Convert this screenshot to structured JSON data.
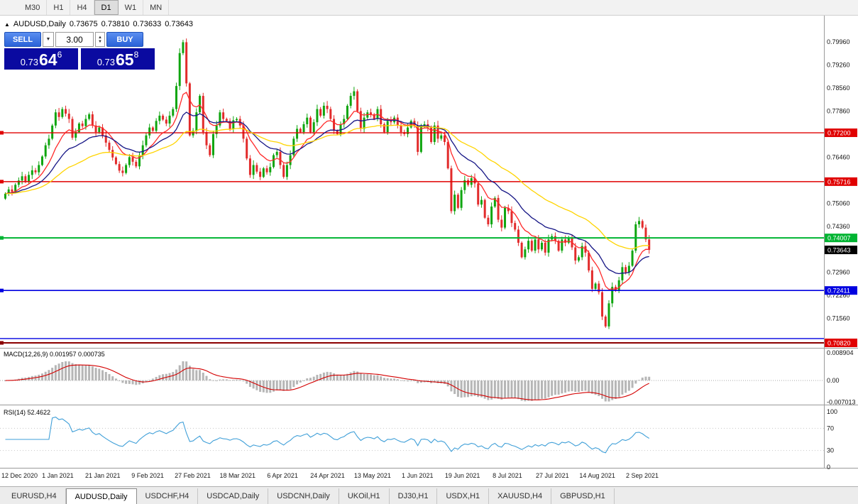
{
  "toolbar": {
    "timeframes": [
      "M30",
      "H1",
      "H4",
      "D1",
      "W1",
      "MN"
    ],
    "active_timeframe": "D1"
  },
  "chart_header": {
    "collapse_icon": "▲",
    "symbol": "AUDUSD,Daily",
    "open": "0.73675",
    "high": "0.73810",
    "low": "0.73633",
    "close": "0.73643"
  },
  "trade_panel": {
    "sell_label": "SELL",
    "buy_label": "BUY",
    "volume": "3.00",
    "dropdown_icon": "▼",
    "spin_up_icon": "▲",
    "spin_down_icon": "▼",
    "sell_price_prefix": "0.73",
    "sell_price_big": "64",
    "sell_price_sup": "6",
    "buy_price_prefix": "0.73",
    "buy_price_big": "65",
    "buy_price_sup": "8",
    "panel_color": "#0a0aa0",
    "button_color": "#2a62d8"
  },
  "indicators": {
    "macd_label": "MACD(12,26,9) 0.001957 0.000735",
    "rsi_label": "RSI(14) 52.4622"
  },
  "tabs": {
    "active_index": 1,
    "items": [
      "EURUSD,H4",
      "AUDUSD,Daily",
      "USDCHF,H4",
      "USDCAD,Daily",
      "USDCNH,Daily",
      "UKOil,H1",
      "DJ30,H1",
      "USDX,H1",
      "XAUUSD,H4",
      "GBPUSD,H1"
    ]
  },
  "chart_data": {
    "type": "candlestick",
    "title": "AUDUSD Daily",
    "candle_colors": {
      "up": "#0fa50f",
      "down": "#e22b2b"
    },
    "closes": [
      0.7535,
      0.7548,
      0.754,
      0.7562,
      0.7575,
      0.7588,
      0.7572,
      0.7592,
      0.7606,
      0.76,
      0.7622,
      0.7648,
      0.7682,
      0.7702,
      0.7742,
      0.7782,
      0.7768,
      0.7792,
      0.7778,
      0.7762,
      0.7705,
      0.7722,
      0.7748,
      0.774,
      0.7762,
      0.7776,
      0.7742,
      0.7722,
      0.7736,
      0.7712,
      0.769,
      0.7668,
      0.7645,
      0.7625,
      0.7605,
      0.7598,
      0.7622,
      0.7646,
      0.7632,
      0.7618,
      0.7652,
      0.7682,
      0.7712,
      0.7736,
      0.7726,
      0.7756,
      0.7772,
      0.776,
      0.7748,
      0.7772,
      0.7792,
      0.7862,
      0.7962,
      0.7995,
      0.787,
      0.7712,
      0.7726,
      0.7782,
      0.7832,
      0.7722,
      0.7682,
      0.7652,
      0.7716,
      0.7742,
      0.7782,
      0.7762,
      0.7756,
      0.7732,
      0.7758,
      0.7762,
      0.7742,
      0.7702,
      0.7642,
      0.7592,
      0.7622,
      0.7602,
      0.7586,
      0.7612,
      0.76,
      0.7616,
      0.7652,
      0.7662,
      0.7622,
      0.7586,
      0.7622,
      0.7652,
      0.7702,
      0.7732,
      0.7722,
      0.7746,
      0.7766,
      0.7722,
      0.7752,
      0.7792,
      0.7772,
      0.7802,
      0.7792,
      0.7762,
      0.7726,
      0.7716,
      0.7746,
      0.7762,
      0.7802,
      0.7832,
      0.7846,
      0.7786,
      0.7732,
      0.7766,
      0.7782,
      0.7776,
      0.7762,
      0.7792,
      0.7746,
      0.7722,
      0.7756,
      0.7752,
      0.7766,
      0.7742,
      0.7722,
      0.7716,
      0.7736,
      0.7756,
      0.7742,
      0.7662,
      0.7742,
      0.7746,
      0.7736,
      0.7692,
      0.7742,
      0.7702,
      0.7712,
      0.7692,
      0.7612,
      0.7482,
      0.7532,
      0.7492,
      0.7546,
      0.7576,
      0.7562,
      0.7582,
      0.7566,
      0.7502,
      0.7516,
      0.7462,
      0.7442,
      0.7496,
      0.7522,
      0.7456,
      0.7432,
      0.7492,
      0.7482,
      0.7446,
      0.7426,
      0.7386,
      0.7342,
      0.7366,
      0.7392,
      0.7362,
      0.7396,
      0.7366,
      0.7386,
      0.7356,
      0.7396,
      0.7406,
      0.7392,
      0.7362,
      0.7396,
      0.7386,
      0.7402,
      0.7372,
      0.7332,
      0.7342,
      0.7376,
      0.7356,
      0.7302,
      0.7246,
      0.7262,
      0.7236,
      0.7162,
      0.7132,
      0.7202,
      0.7252,
      0.7242,
      0.7272,
      0.7312,
      0.7296,
      0.7316,
      0.7362,
      0.7442,
      0.7452,
      0.7432,
      0.7396,
      0.73643
    ],
    "date_labels": [
      "12 Dec 2020",
      "1 Jan 2021",
      "21 Jan 2021",
      "9 Feb 2021",
      "27 Feb 2021",
      "18 Mar 2021",
      "6 Apr 2021",
      "24 Apr 2021",
      "13 May 2021",
      "1 Jun 2021",
      "19 Jun 2021",
      "8 Jul 2021",
      "27 Jul 2021",
      "14 Aug 2021",
      "2 Sep 2021"
    ],
    "price_axis_ticks": [
      "0.79960",
      "0.79260",
      "0.78560",
      "0.77860",
      "0.76460",
      "0.75060",
      "0.74360",
      "0.72960",
      "0.72260",
      "0.71560"
    ],
    "hlines": [
      {
        "price": 0.772,
        "label": "0.77200",
        "color": "#e00000",
        "width": 1.4
      },
      {
        "price": 0.75716,
        "label": "0.75716",
        "color": "#e00000",
        "width": 1.4
      },
      {
        "price": 0.74007,
        "label": "0.74007",
        "color": "#00b432",
        "width": 2
      },
      {
        "price": 0.72411,
        "label": "0.72411",
        "color": "#0000e0",
        "width": 1.6
      },
      {
        "price": 0.7095,
        "label": "",
        "color": "#0000e0",
        "width": 1.4
      },
      {
        "price": 0.7082,
        "label": "0.70820",
        "color": "#8b0000",
        "width": 2,
        "badge": "#e00000"
      }
    ],
    "current_price": {
      "price": 0.73643,
      "label": "0.73643",
      "badge": "#000000"
    },
    "ma_lines": [
      {
        "name": "fast MA",
        "period": 10,
        "color": "#ff2828"
      },
      {
        "name": "mid MA",
        "period": 21,
        "color": "#151585"
      },
      {
        "name": "slow MA",
        "period": 45,
        "color": "#ffd400"
      }
    ],
    "macd": {
      "params": "12,26,9",
      "hist_color": "#b6b6b6",
      "signal_color": "#d40000",
      "axis_labels": [
        "0.008904",
        "0.00",
        "-0.007013"
      ],
      "current_values": [
        0.001957,
        0.000735
      ]
    },
    "rsi": {
      "period": 14,
      "current_value": 52.4622,
      "color": "#3f9fd8",
      "levels": [
        70,
        30
      ],
      "axis_labels": [
        "100",
        "70",
        "30",
        "0"
      ]
    }
  }
}
